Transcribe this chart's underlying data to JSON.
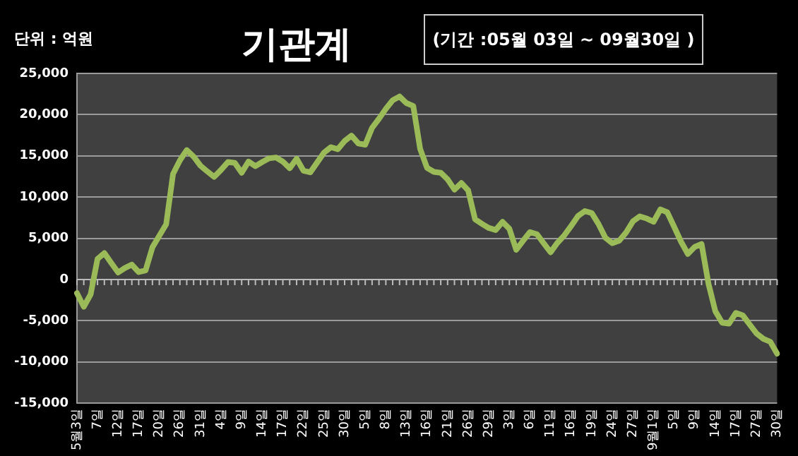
{
  "chart_data": {
    "type": "line",
    "title": "기관계",
    "subtitle": "(기간 :05월 03일 ~ 09월30일 )",
    "ylabel": "단위 : 억원",
    "categories": [
      "5월3일",
      null,
      null,
      "7일",
      null,
      null,
      "12일",
      null,
      null,
      "17일",
      null,
      null,
      "20일",
      null,
      null,
      "26일",
      null,
      null,
      "31일",
      null,
      null,
      "4일",
      null,
      null,
      "9일",
      null,
      null,
      "14일",
      null,
      null,
      "17일",
      null,
      null,
      "22일",
      null,
      null,
      "25일",
      null,
      null,
      "30일",
      null,
      null,
      "5일",
      null,
      null,
      "8일",
      null,
      null,
      "13일",
      null,
      null,
      "16일",
      null,
      null,
      "21일",
      null,
      null,
      "26일",
      null,
      null,
      "29일",
      null,
      null,
      "3일",
      null,
      null,
      "6일",
      null,
      null,
      "11일",
      null,
      null,
      "16일",
      null,
      null,
      "19일",
      null,
      null,
      "24일",
      null,
      null,
      "27일",
      null,
      null,
      "9월1일",
      null,
      null,
      "5일",
      null,
      null,
      "9일",
      null,
      null,
      "14일",
      null,
      null,
      "17일",
      null,
      null,
      "27일",
      null,
      null,
      "30일"
    ],
    "series": [
      {
        "color": "#9bbb59",
        "values": [
          -1650,
          -3300,
          -1800,
          2500,
          3200,
          2000,
          850,
          1400,
          1800,
          900,
          1100,
          3900,
          5300,
          6700,
          12800,
          14450,
          15700,
          14900,
          13800,
          13100,
          12450,
          13300,
          14250,
          14150,
          12950,
          14300,
          13750,
          14250,
          14700,
          14800,
          14300,
          13500,
          14650,
          13200,
          13000,
          14200,
          15400,
          16050,
          15800,
          16800,
          17450,
          16500,
          16350,
          18400,
          19500,
          20700,
          21750,
          22200,
          21400,
          21050,
          15850,
          13550,
          13050,
          12950,
          12150,
          10900,
          11700,
          10800,
          7300,
          6750,
          6250,
          6000,
          7000,
          6150,
          3600,
          4700,
          5750,
          5500,
          4400,
          3300,
          4450,
          5350,
          6500,
          7700,
          8300,
          8050,
          6700,
          5050,
          4400,
          4700,
          5700,
          7050,
          7650,
          7400,
          7000,
          8500,
          8150,
          6400,
          4600,
          3100,
          3950,
          4300,
          -500,
          -3850,
          -5250,
          -5350,
          -4050,
          -4350,
          -5450,
          -6550,
          -7200,
          -7550,
          -9000
        ]
      }
    ],
    "ylim": [
      -15000,
      25000
    ],
    "yticks": [
      {
        "value": -15000,
        "label": "-15,000"
      },
      {
        "value": -10000,
        "label": "-10,000"
      },
      {
        "value": -5000,
        "label": "-5,000"
      },
      0,
      {
        "value": 5000,
        "label": "5,000"
      },
      {
        "value": 10000,
        "label": "10,000"
      },
      {
        "value": 15000,
        "label": "15,000"
      },
      {
        "value": 20000,
        "label": "20,000"
      },
      {
        "value": 25000,
        "label": "25,000"
      }
    ],
    "grid": "y",
    "legend": false,
    "marker": "none",
    "line_style": "solid"
  }
}
